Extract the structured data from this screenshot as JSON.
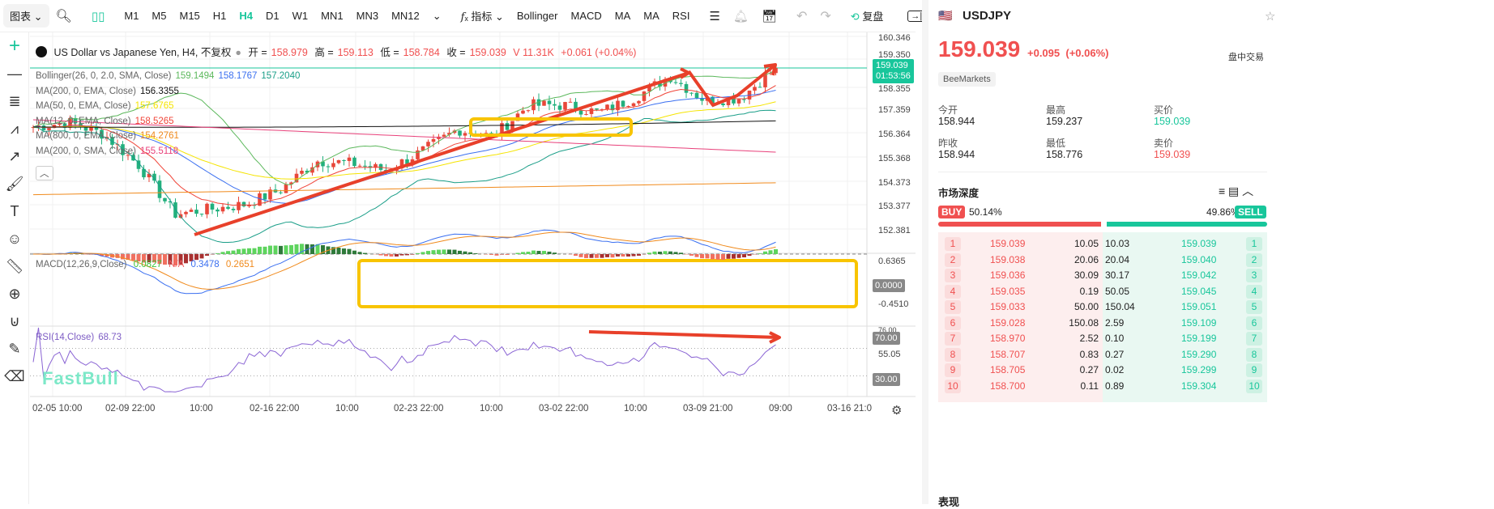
{
  "toolbar": {
    "chart_menu": "图表",
    "timeframes": [
      "M1",
      "M5",
      "M15",
      "H1",
      "H4",
      "D1",
      "W1",
      "MN1",
      "MN3",
      "MN12"
    ],
    "active_timeframe": "H4",
    "indicators_label": "指标",
    "indicators": [
      "Bollinger",
      "MACD",
      "MA",
      "MA",
      "RSI"
    ],
    "replay_label": "复盘"
  },
  "legend": {
    "title": "US Dollar vs Japanese Yen, H4, 不复权",
    "open_label": "开 =",
    "open": "158.979",
    "high_label": "高 =",
    "high": "159.113",
    "low_label": "低 =",
    "low": "158.784",
    "close_label": "收 =",
    "close": "159.039",
    "volume": "V 11.31K",
    "change": "+0.061 (+0.04%)",
    "indicators": [
      {
        "name": "Bollinger(26, 0, 2.0, SMA, Close)",
        "values": [
          "159.1494",
          "158.1767",
          "157.2040"
        ],
        "colors": [
          "#5cb85c",
          "#3a6ff0",
          "#1a9e88"
        ]
      },
      {
        "name": "MA(200, 0, EMA, Close)",
        "values": [
          "156.3355"
        ],
        "colors": [
          "#111111"
        ]
      },
      {
        "name": "MA(50, 0, EMA, Close)",
        "values": [
          "157.6765"
        ],
        "colors": [
          "#f5e400"
        ]
      },
      {
        "name": "MA(12, 0, EMA, Close)",
        "values": [
          "158.5265"
        ],
        "colors": [
          "#f04438"
        ]
      },
      {
        "name": "MA(800, 0, EMA, Close)",
        "values": [
          "154.2761"
        ],
        "colors": [
          "#f08a1c"
        ]
      },
      {
        "name": "MA(200, 0, SMA, Close)",
        "values": [
          "155.5118"
        ],
        "colors": [
          "#e8407a"
        ]
      }
    ],
    "macd": {
      "name": "MACD(12,26,9,Close)",
      "values": [
        "0.0827",
        "N/A",
        "0.3478",
        "0.2651"
      ],
      "colors": [
        "#3cc43c",
        "#f06060",
        "#3a6ff0",
        "#f08a1c"
      ]
    },
    "rsi": {
      "name": "RSI(14,Close)",
      "value": "68.73"
    }
  },
  "price_axis": [
    "160.346",
    "159.350",
    "158.355",
    "157.359",
    "156.364",
    "155.368",
    "154.373",
    "153.377",
    "152.381"
  ],
  "current_price": {
    "price": "159.039",
    "countdown": "01:53:56"
  },
  "macd_axis": [
    "0.6365",
    "0.0000",
    "-0.4510"
  ],
  "rsi_axis": [
    "76.00",
    "70.00",
    "55.05",
    "30.00"
  ],
  "time_axis": [
    "02-05 10:00",
    "02-09 22:00",
    "10:00",
    "02-16 22:00",
    "10:00",
    "02-23 22:00",
    "10:00",
    "03-02 22:00",
    "10:00",
    "03-09 21:00",
    "09:00",
    "03-16 21:0"
  ],
  "watermark": "FastBull",
  "chart_data": {
    "type": "candlestick",
    "close_path": [
      156.6,
      156.8,
      156.3,
      155.0,
      153.0,
      153.2,
      153.4,
      154.0,
      155.2,
      155.1,
      154.8,
      155.6,
      156.5,
      156.2,
      157.5,
      157.5,
      157.2,
      157.8,
      158.7,
      157.7,
      157.8,
      159.04
    ],
    "ylim": [
      152.0,
      160.5
    ]
  },
  "symbol": {
    "name": "USDJPY",
    "price": "159.039",
    "change": "+0.095",
    "change_pct": "(+0.06%)",
    "status": "盘中交易",
    "broker": "BeeMarkets",
    "stats": [
      {
        "label": "今开",
        "value": "158.944"
      },
      {
        "label": "最高",
        "value": "159.237"
      },
      {
        "label": "买价",
        "value": "159.039"
      },
      {
        "label": "昨收",
        "value": "158.944"
      },
      {
        "label": "最低",
        "value": "158.776"
      },
      {
        "label": "卖价",
        "value": "159.039"
      }
    ]
  },
  "depth": {
    "title": "市场深度",
    "buy_label": "BUY",
    "buy_pct": "50.14%",
    "sell_label": "SELL",
    "sell_pct": "49.86%",
    "buy_fraction": 0.5014,
    "rows": [
      {
        "n": "1",
        "bid": "159.039",
        "bid_vol": "10.05",
        "ask_vol": "10.03",
        "ask": "159.039"
      },
      {
        "n": "2",
        "bid": "159.038",
        "bid_vol": "20.06",
        "ask_vol": "20.04",
        "ask": "159.040"
      },
      {
        "n": "3",
        "bid": "159.036",
        "bid_vol": "30.09",
        "ask_vol": "30.17",
        "ask": "159.042"
      },
      {
        "n": "4",
        "bid": "159.035",
        "bid_vol": "0.19",
        "ask_vol": "50.05",
        "ask": "159.045"
      },
      {
        "n": "5",
        "bid": "159.033",
        "bid_vol": "50.00",
        "ask_vol": "150.04",
        "ask": "159.051"
      },
      {
        "n": "6",
        "bid": "159.028",
        "bid_vol": "150.08",
        "ask_vol": "2.59",
        "ask": "159.109"
      },
      {
        "n": "7",
        "bid": "158.970",
        "bid_vol": "2.52",
        "ask_vol": "0.10",
        "ask": "159.199"
      },
      {
        "n": "8",
        "bid": "158.707",
        "bid_vol": "0.83",
        "ask_vol": "0.27",
        "ask": "159.290"
      },
      {
        "n": "9",
        "bid": "158.705",
        "bid_vol": "0.27",
        "ask_vol": "0.02",
        "ask": "159.299"
      },
      {
        "n": "10",
        "bid": "158.700",
        "bid_vol": "0.11",
        "ask_vol": "0.89",
        "ask": "159.304"
      }
    ]
  },
  "next_section": "表现"
}
